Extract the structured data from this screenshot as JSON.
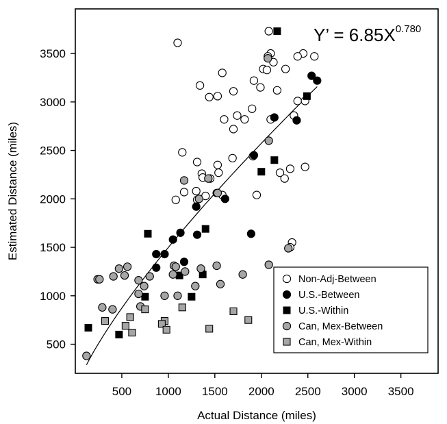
{
  "chart_data": {
    "type": "scatter",
    "xlabel": "Actual Distance (miles)",
    "ylabel": "Estimated Distance (miles)",
    "xlim": [
      0,
      3900
    ],
    "ylim": [
      200,
      3960
    ],
    "xticks": [
      500,
      1000,
      1500,
      2000,
      2500,
      3000,
      3500
    ],
    "yticks": [
      500,
      1000,
      1500,
      2000,
      2500,
      3000,
      3500
    ],
    "grid": false,
    "legend_position": "bottom-right",
    "annotation": {
      "base": "Y’ = 6.85X",
      "exponent": "0.780",
      "coefficient": 6.85,
      "power": 0.78,
      "fit_x_range": [
        120,
        2600
      ]
    },
    "series": [
      {
        "name": "Non-Adj-Between",
        "marker": "circle",
        "fill": "#ffffff",
        "points": [
          [
            2080,
            3730
          ],
          [
            1100,
            3610
          ],
          [
            2100,
            3500
          ],
          [
            2070,
            3470
          ],
          [
            2450,
            3500
          ],
          [
            2570,
            3470
          ],
          [
            2390,
            3470
          ],
          [
            2130,
            3410
          ],
          [
            2020,
            3340
          ],
          [
            2060,
            3330
          ],
          [
            2260,
            3340
          ],
          [
            1580,
            3300
          ],
          [
            1920,
            3220
          ],
          [
            1340,
            3170
          ],
          [
            1700,
            3110
          ],
          [
            2170,
            3120
          ],
          [
            1440,
            3050
          ],
          [
            1530,
            3060
          ],
          [
            1990,
            3150
          ],
          [
            2390,
            3010
          ],
          [
            2470,
            3010
          ],
          [
            1900,
            2930
          ],
          [
            1740,
            2860
          ],
          [
            1820,
            2820
          ],
          [
            2100,
            2820
          ],
          [
            2350,
            2860
          ],
          [
            1600,
            2820
          ],
          [
            1700,
            2720
          ],
          [
            1150,
            2480
          ],
          [
            1310,
            2380
          ],
          [
            1530,
            2350
          ],
          [
            1910,
            2440
          ],
          [
            1690,
            2420
          ],
          [
            1360,
            2260
          ],
          [
            1370,
            2220
          ],
          [
            1450,
            2210
          ],
          [
            1540,
            2270
          ],
          [
            2200,
            2270
          ],
          [
            2310,
            2310
          ],
          [
            2470,
            2330
          ],
          [
            1170,
            2070
          ],
          [
            1300,
            2080
          ],
          [
            1400,
            2030
          ],
          [
            1580,
            2040
          ],
          [
            2250,
            2210
          ],
          [
            1080,
            1990
          ],
          [
            1310,
            1990
          ],
          [
            1950,
            2040
          ],
          [
            2330,
            1550
          ],
          [
            2310,
            1500
          ]
        ]
      },
      {
        "name": "U.S.-Between",
        "marker": "circle",
        "fill": "#000000",
        "points": [
          [
            2540,
            3270
          ],
          [
            2600,
            3220
          ],
          [
            2140,
            2840
          ],
          [
            2380,
            2810
          ],
          [
            1920,
            2450
          ],
          [
            1300,
            1920
          ],
          [
            1520,
            2060
          ],
          [
            1610,
            2000
          ],
          [
            1130,
            1650
          ],
          [
            1310,
            1630
          ],
          [
            1890,
            1640
          ],
          [
            1050,
            1580
          ],
          [
            870,
            1430
          ],
          [
            960,
            1430
          ],
          [
            1170,
            1350
          ],
          [
            870,
            1290
          ]
        ]
      },
      {
        "name": "U.S.-Within",
        "marker": "square",
        "fill": "#000000",
        "points": [
          [
            2170,
            3730
          ],
          [
            2490,
            3060
          ],
          [
            2140,
            2400
          ],
          [
            2000,
            2280
          ],
          [
            780,
            1640
          ],
          [
            1400,
            1690
          ],
          [
            1120,
            1210
          ],
          [
            1370,
            1220
          ],
          [
            750,
            990
          ],
          [
            1250,
            990
          ],
          [
            140,
            670
          ],
          [
            470,
            600
          ]
        ]
      },
      {
        "name": "Can, Mex-Between",
        "marker": "circle",
        "fill": "#a6a6a6",
        "points": [
          [
            2070,
            3450
          ],
          [
            2080,
            2600
          ],
          [
            1170,
            2190
          ],
          [
            1430,
            2210
          ],
          [
            1530,
            2060
          ],
          [
            1330,
            2000
          ],
          [
            240,
            1170
          ],
          [
            260,
            1170
          ],
          [
            410,
            1200
          ],
          [
            530,
            1210
          ],
          [
            470,
            1280
          ],
          [
            560,
            1300
          ],
          [
            680,
            1160
          ],
          [
            800,
            1200
          ],
          [
            1060,
            1310
          ],
          [
            1080,
            1300
          ],
          [
            1520,
            1310
          ],
          [
            740,
            1100
          ],
          [
            1180,
            1250
          ],
          [
            1350,
            1280
          ],
          [
            1050,
            1220
          ],
          [
            1290,
            1100
          ],
          [
            1560,
            1120
          ],
          [
            1800,
            1220
          ],
          [
            2080,
            1320
          ],
          [
            2290,
            1490
          ],
          [
            680,
            1020
          ],
          [
            960,
            1000
          ],
          [
            1100,
            1000
          ],
          [
            290,
            880
          ],
          [
            400,
            860
          ],
          [
            700,
            890
          ],
          [
            120,
            380
          ]
        ]
      },
      {
        "name": "Can, Mex-Within",
        "marker": "square",
        "fill": "#a6a6a6",
        "points": [
          [
            320,
            740
          ],
          [
            590,
            780
          ],
          [
            960,
            740
          ],
          [
            930,
            710
          ],
          [
            1150,
            880
          ],
          [
            1700,
            840
          ],
          [
            540,
            690
          ],
          [
            750,
            860
          ],
          [
            610,
            620
          ],
          [
            980,
            650
          ],
          [
            1440,
            660
          ],
          [
            1860,
            750
          ]
        ]
      }
    ]
  }
}
